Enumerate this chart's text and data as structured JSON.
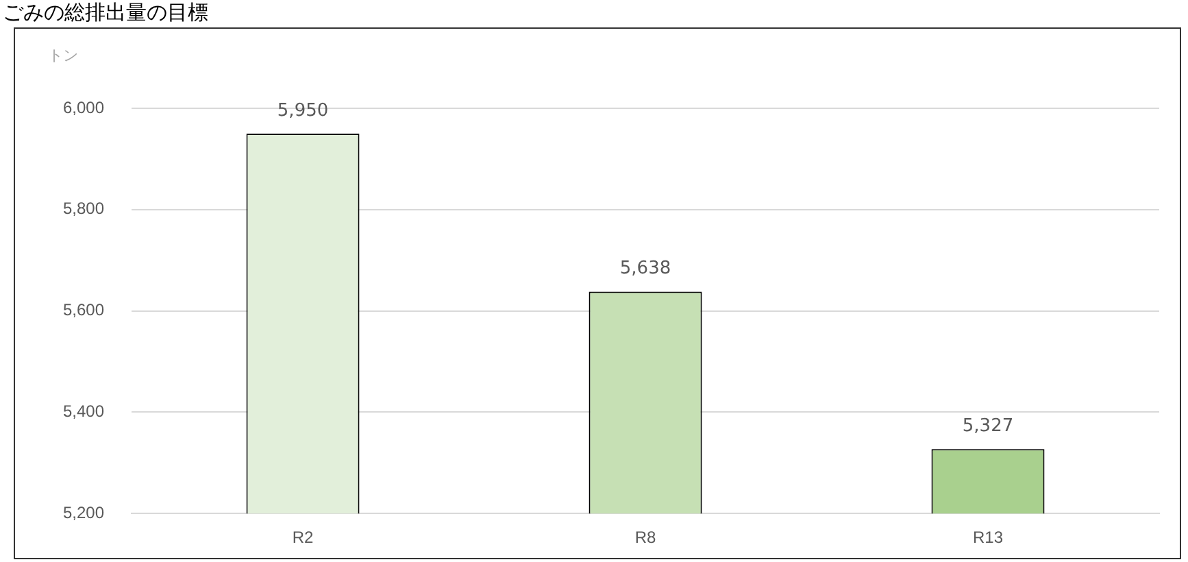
{
  "chart_data": {
    "type": "bar",
    "title": "ごみの総排出量の目標",
    "ylabel": "トン",
    "categories": [
      "R2",
      "R8",
      "R13"
    ],
    "values": [
      5950,
      5638,
      5327
    ],
    "colors": [
      "#e2efda",
      "#c6e0b4",
      "#a9d08e"
    ],
    "value_labels": [
      "5,950",
      "5,638",
      "5,327"
    ],
    "ylim": [
      5200,
      6000
    ],
    "yticks": [
      {
        "value": 5200,
        "label": "5,200"
      },
      {
        "value": 5400,
        "label": "5,400"
      },
      {
        "value": 5600,
        "label": "5,600"
      },
      {
        "value": 5800,
        "label": "5,800"
      },
      {
        "value": 6000,
        "label": "6,000"
      }
    ],
    "grid": "y",
    "legend": false
  }
}
